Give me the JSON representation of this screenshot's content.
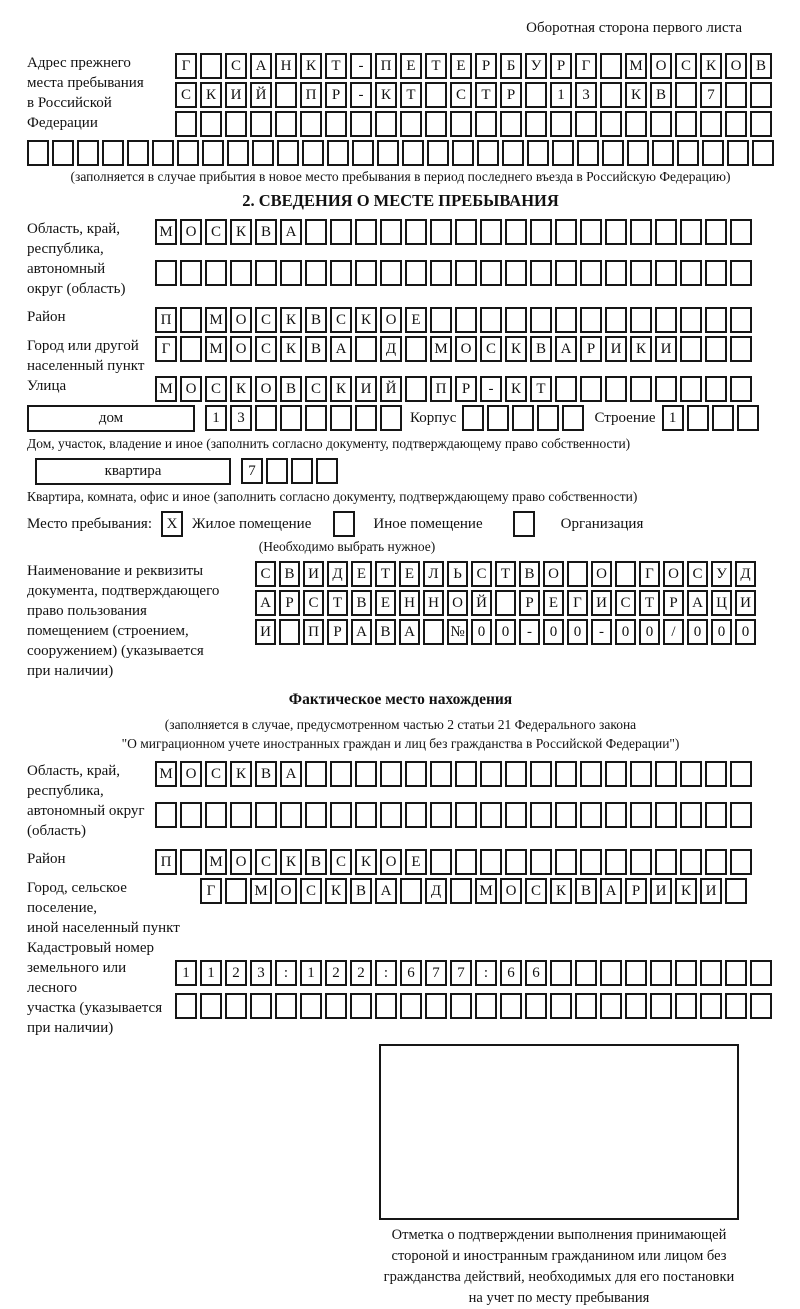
{
  "page": {
    "header_note": "Оборотная сторона первого листа"
  },
  "prev_address": {
    "label_lines": [
      "Адрес прежнего",
      "места пребывания",
      "в Российской",
      "Федерации"
    ],
    "rows": [
      "Г САНКТ-ПЕТЕРБУРГ МОСКОВ",
      "СКИЙ ПР-КТ СТР 13 КВ 7  ",
      "                        "
    ],
    "full_row": "                              ",
    "caption": "(заполняется в случае прибытия в новое место пребывания в период последнего въезда в Российскую Федерацию)"
  },
  "section2": {
    "title": "2. СВЕДЕНИЯ О МЕСТЕ ПРЕБЫВАНИЯ",
    "region": {
      "label_lines": [
        "Область, край,",
        "республика,",
        "автономный",
        "округ (область)"
      ],
      "rows": [
        "МОСКВА                  ",
        "                        "
      ]
    },
    "district": {
      "label": "Район",
      "row": "П МОСКВСКОЕ             "
    },
    "city": {
      "label_lines": [
        "Город или другой",
        "населенный пункт"
      ],
      "row": "Г МОСКВА Д МОСКВАРИКИ   "
    },
    "street": {
      "label": "Улица",
      "row": "МОСКОВСКИЙ ПР-КТ        "
    },
    "house": {
      "type_value": "дом",
      "num_row": "13      ",
      "korpus_label": "Корпус",
      "korpus_row": "     ",
      "stroenie_label": "Строение",
      "stroenie_row": "1   ",
      "caption": "Дом, участок, владение и иное (заполнить согласно документу, подтверждающему право собственности)"
    },
    "apartment": {
      "type_value": "квартира",
      "num_row": "7   ",
      "caption": "Квартира, комната, офис и иное (заполнить согласно документу, подтверждающему право собственности)"
    },
    "stay_type": {
      "label": "Место пребывания:",
      "options": [
        {
          "label": "Жилое помещение",
          "mark": "X"
        },
        {
          "label": "Иное помещение",
          "mark": ""
        },
        {
          "label": "Организация",
          "mark": ""
        }
      ],
      "note": "(Необходимо выбрать нужное)"
    },
    "doc": {
      "label_lines": [
        "Наименование и реквизиты",
        "документа, подтверждающего",
        "право пользования",
        "помещением (строением,",
        "сооружением) (указывается",
        "при наличии)"
      ],
      "rows": [
        "СВИДЕТЕЛЬСТВО О ГОСУД",
        "АРСТВЕННОЙ РЕГИСТРАЦИ",
        "И ПРАВА №00-00-00/000"
      ]
    }
  },
  "actual_location": {
    "title": "Фактическое место нахождения",
    "caption_lines": [
      "(заполняется в случае, предусмотренном частью 2 статьи 21 Федерального закона",
      "\"О миграционном учете иностранных граждан и лиц без гражданства в Российской Федерации\")"
    ],
    "region": {
      "label_lines": [
        "Область, край,",
        "республика,",
        "автономный округ",
        "(область)"
      ],
      "rows": [
        "МОСКВА                  ",
        "                        "
      ]
    },
    "district": {
      "label": "Район",
      "row": "П МОСКВСКОЕ             "
    },
    "city": {
      "label_lines": [
        "Город, сельское поселение,",
        "иной населенный пункт"
      ],
      "row": "Г МОСКВА Д МОСКВАРИКИ "
    },
    "cadastre": {
      "label_lines": [
        "Кадастровый номер",
        "земельного или лесного",
        "участка (указывается",
        "при наличии)"
      ],
      "rows": [
        "1123:122:677:66         ",
        "                        "
      ]
    }
  },
  "stamp": {
    "caption_lines": [
      "Отметка о подтверждении выполнения принимающей",
      "стороной и иностранным гражданином или лицом без",
      "гражданства действий, необходимых для его постановки",
      "на учет по месту пребывания"
    ]
  }
}
